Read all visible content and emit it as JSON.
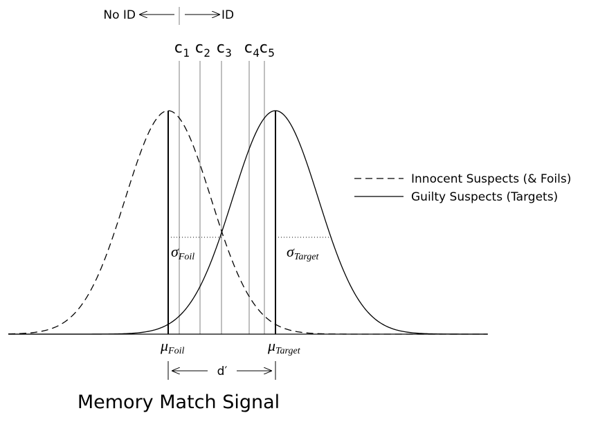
{
  "decision": {
    "left": "No ID",
    "right": "ID"
  },
  "criteria": [
    {
      "symbol": "c",
      "sub": "1"
    },
    {
      "symbol": "c",
      "sub": "2"
    },
    {
      "symbol": "c",
      "sub": "3"
    },
    {
      "symbol": "c",
      "sub": "4"
    },
    {
      "symbol": "c",
      "sub": "5"
    }
  ],
  "sigma_foil": {
    "symbol": "σ",
    "sub": "Foil"
  },
  "sigma_target": {
    "symbol": "σ",
    "sub": "Target"
  },
  "mu_foil": {
    "symbol": "μ",
    "sub": "Foil"
  },
  "mu_target": {
    "symbol": "μ",
    "sub": "Target"
  },
  "distance": "d′",
  "legend": [
    "Innocent Suspects (& Foils)",
    "Guilty Suspects (Targets)"
  ],
  "axis_label": "Memory Match Signal"
}
